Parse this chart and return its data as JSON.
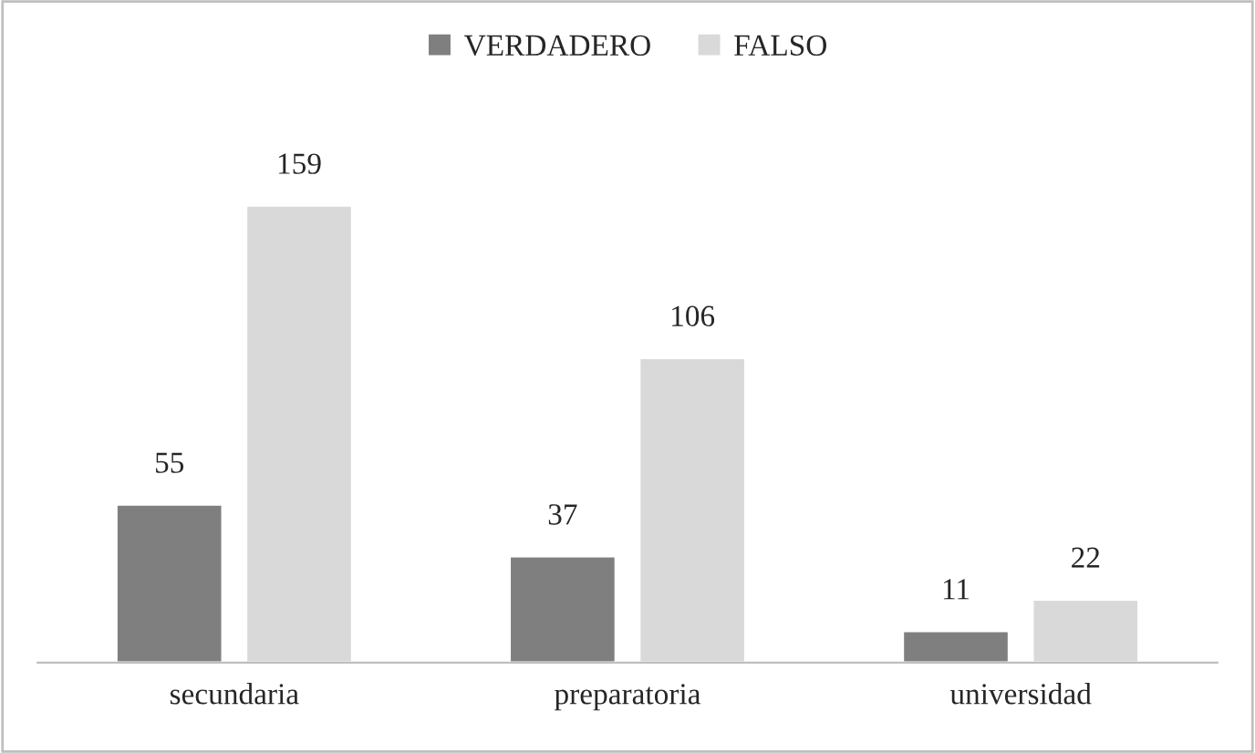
{
  "chart_data": {
    "type": "bar",
    "categories": [
      "secundaria",
      "preparatoria",
      "universidad"
    ],
    "series": [
      {
        "name": "VERDADERO",
        "color": "#7f7f7f",
        "values": [
          55,
          37,
          11
        ]
      },
      {
        "name": "FALSO",
        "color": "#d9d9d9",
        "values": [
          159,
          106,
          22
        ]
      }
    ],
    "data_labels": true,
    "legend": "top",
    "grid": false
  }
}
